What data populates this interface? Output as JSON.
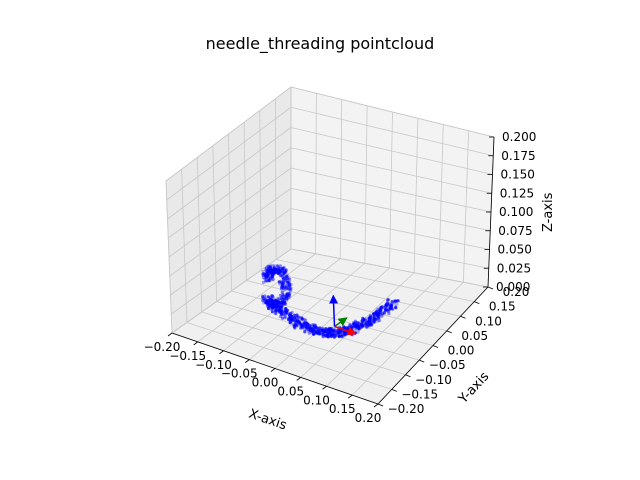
{
  "chart_data": {
    "type": "scatter3d",
    "title": "needle_threading pointcloud",
    "xlabel": "X-axis",
    "ylabel": "Y-axis",
    "zlabel": "Z-axis",
    "xlim": [
      -0.2,
      0.2
    ],
    "ylim": [
      -0.2,
      0.2
    ],
    "zlim": [
      0.0,
      0.2
    ],
    "x_ticks": [
      "−0.20",
      "−0.15",
      "−0.10",
      "−0.05",
      "0.00",
      "0.05",
      "0.10",
      "0.15",
      "0.20"
    ],
    "y_ticks": [
      "−0.20",
      "−0.15",
      "−0.10",
      "−0.05",
      "0.00",
      "0.05",
      "0.10",
      "0.15",
      "0.20"
    ],
    "z_ticks": [
      "0.000",
      "0.025",
      "0.050",
      "0.075",
      "0.100",
      "0.125",
      "0.150",
      "0.175",
      "0.200"
    ],
    "grid": true,
    "point_color": "#0000ff",
    "coordinate_frame": {
      "origin": [
        0,
        0,
        0
      ],
      "x_axis_color": "#ff0000",
      "y_axis_color": "#008000",
      "z_axis_color": "#0000ff"
    }
  }
}
